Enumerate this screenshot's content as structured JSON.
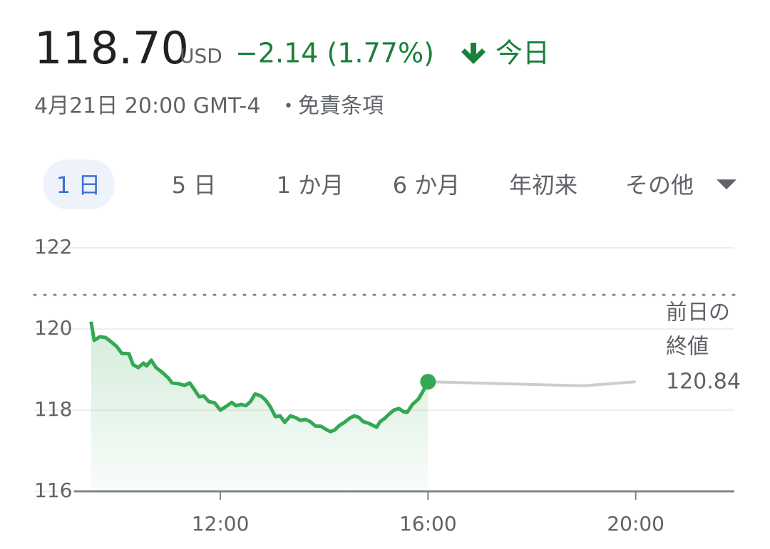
{
  "quote": {
    "price": "118.70",
    "currency": "USD",
    "change": "−2.14 (1.77%)",
    "period": "今日",
    "date": "4月21日 20:00 GMT-4",
    "separator": "•",
    "disclaimer": "免責条項"
  },
  "tabs": [
    "1 日",
    "5 日",
    "1 か月",
    "6 か月",
    "年初来",
    "その他"
  ],
  "chart_data": {
    "type": "line",
    "series": [
      {
        "color": "#34a853",
        "x": [
          9.51,
          9.57,
          9.68,
          9.79,
          9.9,
          10.01,
          10.1,
          10.24,
          10.32,
          10.42,
          10.52,
          10.58,
          10.67,
          10.76,
          10.9,
          11.0,
          11.07,
          11.2,
          11.31,
          11.41,
          11.51,
          11.59,
          11.68,
          11.78,
          11.89,
          12.0,
          12.11,
          12.22,
          12.3,
          12.4,
          12.49,
          12.58,
          12.67,
          12.78,
          12.87,
          12.96,
          13.06,
          13.15,
          13.24,
          13.35,
          13.46,
          13.54,
          13.64,
          13.73,
          13.83,
          13.94,
          14.03,
          14.12,
          14.2,
          14.3,
          14.39,
          14.5,
          14.58,
          14.67,
          14.75,
          14.85,
          14.93,
          15.01,
          15.08,
          15.16,
          15.24,
          15.34,
          15.44,
          15.53,
          15.6,
          15.7,
          15.82,
          15.9,
          16.0
        ],
        "values": [
          120.18,
          119.72,
          119.81,
          119.79,
          119.68,
          119.56,
          119.4,
          119.39,
          119.12,
          119.05,
          119.16,
          119.09,
          119.23,
          119.05,
          118.91,
          118.79,
          118.67,
          118.65,
          118.61,
          118.67,
          118.49,
          118.33,
          118.35,
          118.21,
          118.18,
          118.0,
          118.09,
          118.19,
          118.11,
          118.14,
          118.11,
          118.21,
          118.4,
          118.35,
          118.25,
          118.09,
          117.84,
          117.86,
          117.7,
          117.86,
          117.81,
          117.75,
          117.77,
          117.72,
          117.61,
          117.6,
          117.53,
          117.47,
          117.51,
          117.63,
          117.7,
          117.81,
          117.86,
          117.82,
          117.72,
          117.68,
          117.63,
          117.58,
          117.72,
          117.79,
          117.89,
          118.0,
          118.04,
          117.96,
          117.95,
          118.14,
          118.28,
          118.46,
          118.7
        ]
      },
      {
        "color": "#cccccc",
        "x": [
          16.0,
          19.0,
          20.0
        ],
        "values": [
          118.7,
          118.6,
          118.7
        ]
      }
    ],
    "xlim": [
      9.5,
      21.9
    ],
    "ylim": [
      116,
      122
    ],
    "xticks": [
      {
        "value": 12,
        "label": "12:00"
      },
      {
        "value": 16,
        "label": "16:00"
      },
      {
        "value": 20,
        "label": "20:00"
      }
    ],
    "yticks": [
      116,
      118,
      120,
      122
    ],
    "grid": true,
    "previous_close": {
      "value": 120.84,
      "label": "120.84"
    },
    "previous_close_title": [
      "前日の",
      "終値"
    ]
  }
}
